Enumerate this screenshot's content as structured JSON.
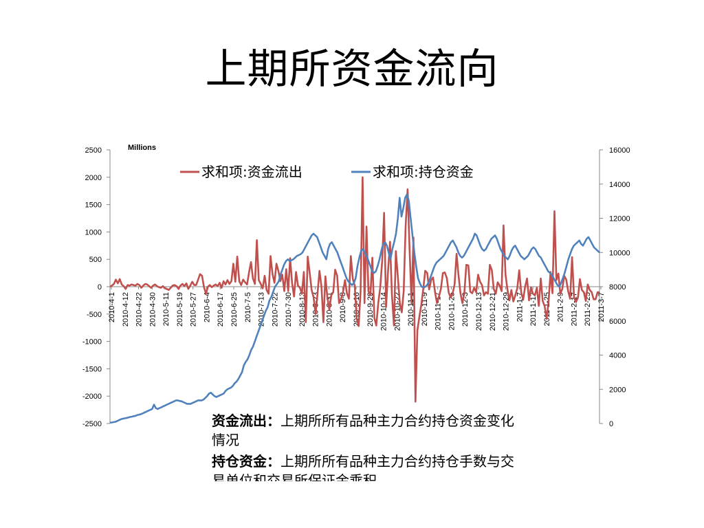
{
  "slide": {
    "title": "上期所资金流向",
    "description": [
      {
        "term": "资金流出：",
        "text": "上期所所有品种主力合约持仓资金变化情况"
      },
      {
        "term": "持仓资金：",
        "text": "上期所所有品种主力合约持仓手数与交易单位和交易所保证金乘积"
      }
    ]
  },
  "chart_data": {
    "type": "line",
    "unit_label": "Millions",
    "legend_position": "top",
    "grid": false,
    "x_tick_labels": [
      "2010-4-1",
      "2010-4-12",
      "2010-4-22",
      "2010-4-30",
      "2010-5-11",
      "2010-5-19",
      "2010-5-27",
      "2010-6-4",
      "2010-6-17",
      "2010-6-25",
      "2010-7-5",
      "2010-7-13",
      "2010-7-22",
      "2010-7-30",
      "2010-8-13",
      "2010-8-23",
      "2010-8-31",
      "2010-9-8",
      "2010-9-16",
      "2010-9-29",
      "2010-10-14",
      "2010-10-22",
      "2010-11-1",
      "2010-11-9",
      "2010-11-17",
      "2010-11-25",
      "2010-12-3",
      "2010-12-13",
      "2010-12-21",
      "2010-12-29",
      "2011-1-7",
      "2011-1-17",
      "2011-1-25",
      "2011-2-9",
      "2011-2-17",
      "2011-2-25",
      "2011-3-7"
    ],
    "y_left": {
      "min": -2500,
      "max": 2500,
      "step": 500
    },
    "y_right": {
      "min": 0,
      "max": 16000,
      "step": 2000
    },
    "colors": {
      "outflow": "#c0504d",
      "position": "#4f81bd"
    },
    "series": [
      {
        "name": "求和项:资金流出",
        "axis": "left",
        "values": [
          0,
          20,
          50,
          130,
          60,
          140,
          40,
          10,
          -40,
          30,
          20,
          40,
          30,
          20,
          50,
          30,
          -20,
          20,
          50,
          40,
          10,
          -20,
          20,
          40,
          10,
          -10,
          -20,
          10,
          -30,
          -40,
          -60,
          -20,
          20,
          30,
          10,
          -40,
          20,
          50,
          10,
          60,
          -40,
          20,
          90,
          30,
          30,
          130,
          230,
          200,
          -10,
          -130,
          0,
          30,
          -10,
          20,
          40,
          10,
          70,
          -20,
          100,
          40,
          120,
          50,
          100,
          420,
          90,
          550,
          100,
          30,
          130,
          80,
          40,
          260,
          450,
          150,
          50,
          850,
          120,
          50,
          -30,
          200,
          -60,
          -130,
          560,
          230,
          70,
          420,
          290,
          100,
          220,
          -80,
          320,
          -80,
          520,
          60,
          -180,
          270,
          20,
          -20,
          -130,
          270,
          -650,
          550,
          250,
          -60,
          -200,
          -500,
          -120,
          290,
          0,
          -650,
          190,
          -190,
          -420,
          -160,
          -100,
          310,
          200,
          -300,
          -220,
          -100,
          120,
          -120,
          -220,
          560,
          140,
          20,
          -580,
          -720,
          -80,
          2000,
          -300,
          1100,
          -80,
          -160,
          530,
          -570,
          -710,
          -300,
          -20,
          470,
          1350,
          -370,
          280,
          820,
          -150,
          -710,
          650,
          180,
          -290,
          -470,
          -80,
          1100,
          1780,
          700,
          -300,
          900,
          -2100,
          -800,
          -550,
          -330,
          -40,
          290,
          250,
          -50,
          120,
          170,
          -100,
          -300,
          -180,
          -40,
          250,
          260,
          160,
          -110,
          -200,
          -120,
          40,
          600,
          210,
          -120,
          -300,
          -100,
          400,
          390,
          -90,
          -120,
          -20,
          -100,
          220,
          90,
          30,
          -160,
          -100,
          -130,
          400,
          300,
          -40,
          -130,
          80,
          20,
          -80,
          1120,
          220,
          -50,
          -250,
          -60,
          -270,
          -160,
          -30,
          300,
          -100,
          -240,
          0,
          150,
          -250,
          -10,
          -130,
          -160,
          -20,
          -350,
          150,
          -260,
          -360,
          -590,
          -260,
          270,
          -120,
          1380,
          120,
          240,
          -130,
          -40,
          200,
          130,
          -80,
          -220,
          540,
          -200,
          -280,
          -200,
          140,
          -60,
          -100,
          -260,
          40,
          -60,
          -100,
          -230,
          -230,
          -100,
          -100
        ]
      },
      {
        "name": "求和项:持仓资金",
        "axis": "right",
        "values": [
          50,
          60,
          80,
          100,
          150,
          200,
          250,
          280,
          300,
          320,
          350,
          380,
          400,
          430,
          450,
          500,
          520,
          550,
          600,
          650,
          700,
          750,
          800,
          850,
          1100,
          900,
          850,
          900,
          950,
          1000,
          1050,
          1100,
          1150,
          1200,
          1250,
          1300,
          1350,
          1350,
          1320,
          1300,
          1250,
          1200,
          1150,
          1150,
          1150,
          1200,
          1250,
          1300,
          1350,
          1350,
          1350,
          1400,
          1500,
          1600,
          1750,
          1800,
          1700,
          1600,
          1550,
          1600,
          1650,
          1700,
          1750,
          1900,
          2000,
          2050,
          2100,
          2200,
          2350,
          2450,
          2600,
          2800,
          3000,
          3400,
          3600,
          3750,
          4000,
          4300,
          4500,
          4800,
          5100,
          5400,
          5700,
          6000,
          6300,
          6600,
          6800,
          7200,
          7400,
          7700,
          8000,
          8150,
          8300,
          8700,
          9000,
          9300,
          9500,
          9600,
          9500,
          9550,
          9600,
          9700,
          9800,
          9850,
          9900,
          10000,
          10200,
          10400,
          10600,
          10800,
          11000,
          11100,
          11000,
          10900,
          10600,
          10300,
          10000,
          9800,
          9600,
          10200,
          10500,
          10600,
          10400,
          10200,
          10000,
          9700,
          9400,
          9100,
          8800,
          8500,
          8300,
          8200,
          8100,
          8200,
          8500,
          9200,
          9700,
          10100,
          10200,
          10000,
          9800,
          9500,
          9200,
          8900,
          8800,
          8900,
          9200,
          9600,
          10100,
          10500,
          10600,
          10400,
          10000,
          9600,
          10200,
          10600,
          11100,
          12000,
          13200,
          12100,
          12600,
          13200,
          13400,
          13000,
          12000,
          11000,
          10000,
          9200,
          8500,
          8200,
          8000,
          7950,
          8000,
          8100,
          8300,
          8600,
          8900,
          9200,
          9400,
          9500,
          9600,
          9700,
          9800,
          10000,
          10200,
          10400,
          10600,
          10700,
          10500,
          10300,
          10000,
          9800,
          9700,
          9800,
          10000,
          10200,
          10400,
          10600,
          10800,
          11100,
          11000,
          10700,
          10400,
          10200,
          10100,
          10200,
          10400,
          10600,
          10800,
          10900,
          11000,
          10800,
          10500,
          10200,
          10000,
          9800,
          9700,
          9600,
          9800,
          10100,
          10300,
          10400,
          10200,
          10000,
          9800,
          9700,
          9600,
          9700,
          9800,
          10000,
          10200,
          10300,
          10200,
          10000,
          9800,
          9700,
          9500,
          9300,
          9100,
          8900,
          8800,
          8700,
          8500,
          8300,
          8100,
          8000,
          8200,
          8500,
          8800,
          9200,
          9600,
          9900,
          10200,
          10400,
          10500,
          10600,
          10700,
          10500,
          10400,
          10600,
          10800,
          10900,
          10700,
          10500,
          10300,
          10200,
          10100,
          10000
        ]
      }
    ]
  }
}
